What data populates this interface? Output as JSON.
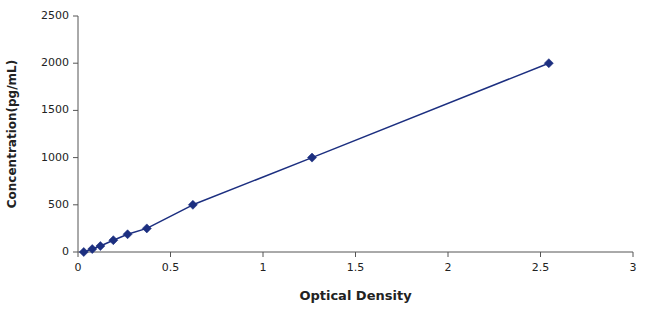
{
  "chart_data": {
    "type": "line",
    "x": [
      0.031,
      0.077,
      0.121,
      0.191,
      0.268,
      0.372,
      0.621,
      1.265,
      2.545
    ],
    "values": [
      0,
      31,
      63,
      125,
      188,
      250,
      500,
      1000,
      2000
    ],
    "color": "#1c2f80",
    "marker": "diamond",
    "line_style": "solid",
    "xlabel": "Optical Density",
    "ylabel": "Concentration(pg/mL)",
    "xlim": [
      0,
      3
    ],
    "ylim": [
      0,
      2500
    ],
    "xticks": [
      0,
      0.5,
      1,
      1.5,
      2,
      2.5,
      3
    ],
    "yticks": [
      0,
      500,
      1000,
      1500,
      2000,
      2500
    ]
  }
}
